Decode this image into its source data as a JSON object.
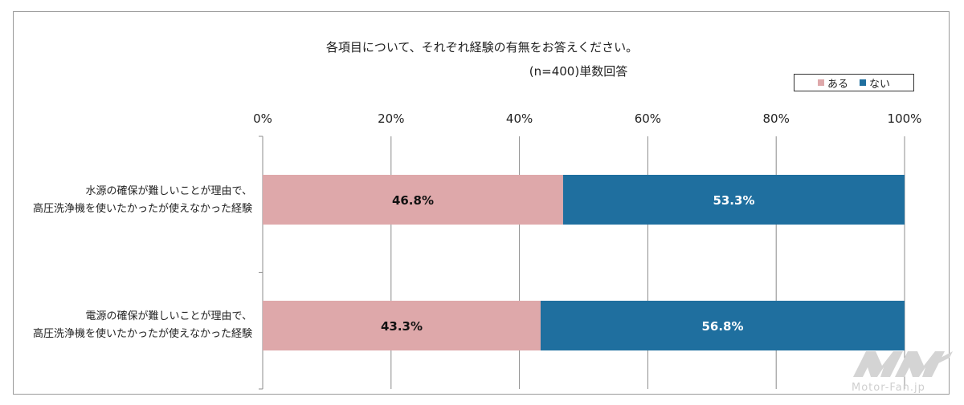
{
  "chart_data": {
    "type": "bar",
    "orientation": "horizontal",
    "stacked": true,
    "title": "各項目について、それぞれ経験の有無をお答えください。",
    "subtitle": "(n=400)単数回答",
    "categories": [
      [
        "水源の確保が難しいことが理由で、",
        "高圧洗浄機を使いたかったが使えなかった経験"
      ],
      [
        "電源の確保が難しいことが理由で、",
        "高圧洗浄機を使いたかったが使えなかった経験"
      ]
    ],
    "series": [
      {
        "name": "ある",
        "values": [
          46.8,
          43.3
        ],
        "labels": [
          "46.8%",
          "43.3%"
        ],
        "color": "#dea8aa",
        "label_color": "#111111"
      },
      {
        "name": "ない",
        "values": [
          53.3,
          56.8
        ],
        "labels": [
          "53.3%",
          "56.8%"
        ],
        "color": "#1f6f9f",
        "label_color": "#ffffff"
      }
    ],
    "xlim": [
      0,
      100
    ],
    "xticks": [
      "0%",
      "20%",
      "40%",
      "60%",
      "80%",
      "100%"
    ],
    "grid": true,
    "legend_position": "top-right"
  },
  "watermark": "Motor-Fan.jp"
}
